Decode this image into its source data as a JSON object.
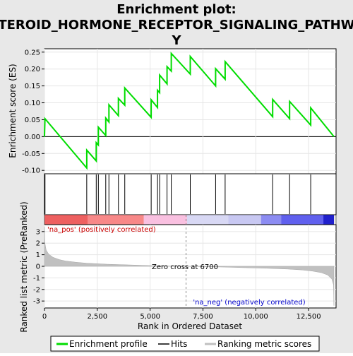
{
  "chart_data": {
    "type": "line",
    "title": "Enrichment plot: STEROID_HORMONE_RECEPTOR_SIGNALING_PATHWAY",
    "title_lines": [
      "Enrichment plot:",
      "STEROID_HORMONE_RECEPTOR_SIGNALING_PATHWA",
      "Y"
    ],
    "xlabel": "Rank in Ordered Dataset",
    "es_ylabel": "Enrichment score (ES)",
    "metric_ylabel": "Ranked list metric (PreRanked)",
    "xlim": [
      0,
      13800
    ],
    "es_ylim": [
      -0.11,
      0.26
    ],
    "metric_ylim": [
      -3.6,
      3.6
    ],
    "x_ticks": [
      0,
      2500,
      5000,
      7500,
      10000,
      12500
    ],
    "x_tick_labels": [
      "0",
      "2,500",
      "5,000",
      "7,500",
      "10,000",
      "12,500"
    ],
    "es_ticks": [
      -0.1,
      -0.05,
      0.0,
      0.05,
      0.1,
      0.15,
      0.2,
      0.25
    ],
    "es_tick_labels": [
      "-0.10",
      "-0.05",
      "0.00",
      "0.05",
      "0.10",
      "0.15",
      "0.20",
      "0.25"
    ],
    "metric_ticks": [
      3,
      2,
      1,
      0,
      -1,
      -2,
      -3
    ],
    "metric_tick_labels": [
      "3",
      "2",
      "1",
      "0",
      "-1",
      "-2",
      "-3"
    ],
    "hits": [
      25,
      2000,
      2450,
      2550,
      2900,
      3050,
      3500,
      3800,
      5050,
      5350,
      5450,
      5800,
      6000,
      6900,
      8100,
      8550,
      10800,
      11600,
      12600
    ],
    "es_curve": [
      [
        0,
        0.0
      ],
      [
        25,
        0.053
      ],
      [
        2000,
        -0.093
      ],
      [
        2000,
        -0.04
      ],
      [
        2450,
        -0.072
      ],
      [
        2450,
        -0.018
      ],
      [
        2550,
        -0.025
      ],
      [
        2550,
        0.028
      ],
      [
        2900,
        0.003
      ],
      [
        2900,
        0.055
      ],
      [
        3050,
        0.043
      ],
      [
        3050,
        0.094
      ],
      [
        3500,
        0.062
      ],
      [
        3500,
        0.113
      ],
      [
        3800,
        0.093
      ],
      [
        3800,
        0.144
      ],
      [
        5050,
        0.057
      ],
      [
        5050,
        0.109
      ],
      [
        5350,
        0.086
      ],
      [
        5350,
        0.137
      ],
      [
        5450,
        0.13
      ],
      [
        5450,
        0.182
      ],
      [
        5800,
        0.156
      ],
      [
        5800,
        0.207
      ],
      [
        6000,
        0.194
      ],
      [
        6000,
        0.246
      ],
      [
        6900,
        0.185
      ],
      [
        6900,
        0.237
      ],
      [
        8100,
        0.15
      ],
      [
        8100,
        0.201
      ],
      [
        8550,
        0.17
      ],
      [
        8550,
        0.222
      ],
      [
        10800,
        0.059
      ],
      [
        10800,
        0.11
      ],
      [
        11600,
        0.053
      ],
      [
        11600,
        0.104
      ],
      [
        12600,
        0.034
      ],
      [
        12600,
        0.085
      ],
      [
        13700,
        0.0
      ]
    ],
    "metric_curve": [
      [
        0,
        3.4
      ],
      [
        20,
        2.0
      ],
      [
        80,
        1.4
      ],
      [
        200,
        1.05
      ],
      [
        400,
        0.78
      ],
      [
        700,
        0.58
      ],
      [
        1000,
        0.46
      ],
      [
        1500,
        0.35
      ],
      [
        2000,
        0.27
      ],
      [
        3000,
        0.18
      ],
      [
        4000,
        0.12
      ],
      [
        5000,
        0.06
      ],
      [
        6000,
        0.02
      ],
      [
        6700,
        0.0
      ],
      [
        7500,
        -0.03
      ],
      [
        8500,
        -0.07
      ],
      [
        9500,
        -0.12
      ],
      [
        10500,
        -0.17
      ],
      [
        11500,
        -0.24
      ],
      [
        12200,
        -0.32
      ],
      [
        12700,
        -0.42
      ],
      [
        13100,
        -0.55
      ],
      [
        13400,
        -0.75
      ],
      [
        13600,
        -1.1
      ],
      [
        13680,
        -1.6
      ],
      [
        13700,
        -3.4
      ]
    ],
    "bar_segments": [
      {
        "from": 0,
        "to": 2050,
        "color": "#ee6060"
      },
      {
        "from": 2050,
        "to": 4700,
        "color": "#f88888"
      },
      {
        "from": 4700,
        "to": 6750,
        "color": "#f9c0e0"
      },
      {
        "from": 6750,
        "to": 8700,
        "color": "#d8d8f4"
      },
      {
        "from": 8700,
        "to": 10250,
        "color": "#c8c8f2"
      },
      {
        "from": 10250,
        "to": 11200,
        "color": "#8c8cf2"
      },
      {
        "from": 11200,
        "to": 13200,
        "color": "#6060ee"
      },
      {
        "from": 13200,
        "to": 13700,
        "color": "#2020cc"
      }
    ],
    "zero_cross": 6700,
    "annotations": {
      "pos": "'na_pos' (positively correlated)",
      "neg": "'na_neg' (negatively correlated)",
      "zero": "Zero cross at 6700"
    },
    "legend": [
      {
        "label": "Enrichment profile",
        "color": "#00dd00"
      },
      {
        "label": "Hits",
        "color": "#000000"
      },
      {
        "label": "Ranking metric scores",
        "color": "#c0c0c0"
      }
    ],
    "legend_position": "bottom",
    "colors": {
      "es_line": "#00dd00",
      "metric_fill": "#c0c0c0",
      "hit_line": "#000000"
    }
  }
}
